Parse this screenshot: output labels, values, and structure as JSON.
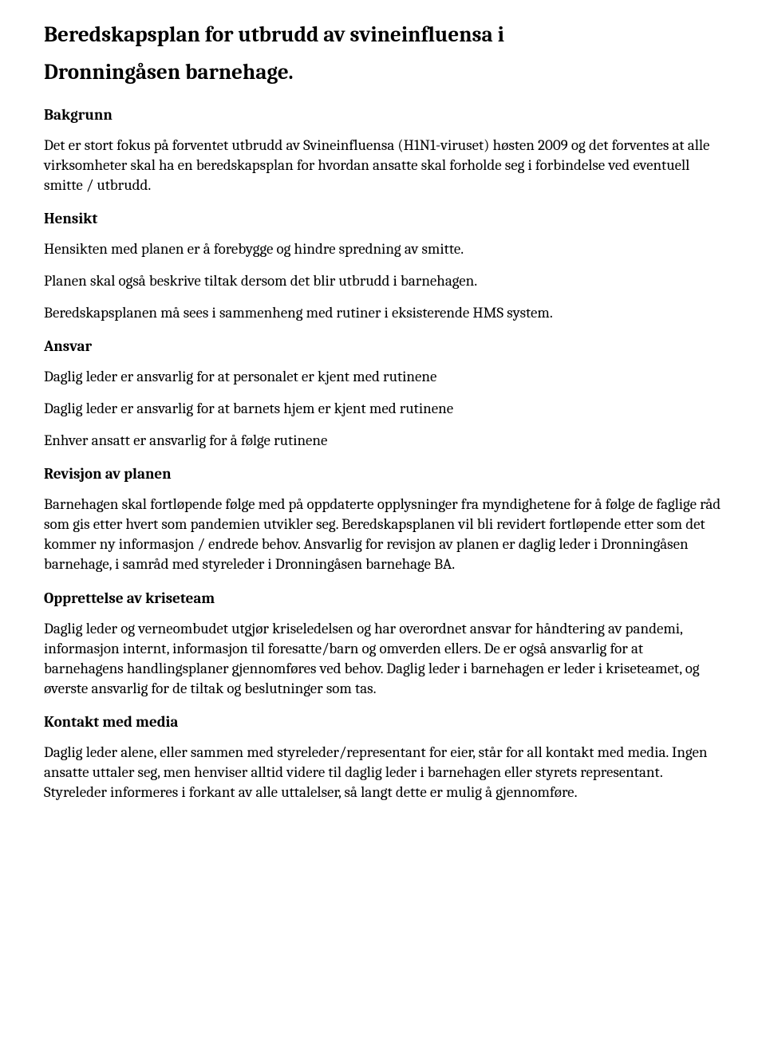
{
  "title_line1": "Beredskapsplan for utbrudd av svineinfluensa i",
  "title_line2": "Dronningåsen barnehage.",
  "sections": {
    "bakgrunn": {
      "heading": " Bakgrunn",
      "p1": "Det er stort fokus på forventet utbrudd av Svineinfluensa (H1N1-viruset) høsten 2009 og det forventes at alle virksomheter skal ha en beredskapsplan for hvordan ansatte skal forholde seg i forbindelse ved eventuell smitte / utbrudd."
    },
    "hensikt": {
      "heading": "Hensikt",
      "p1": "Hensikten med planen er å forebygge og hindre spredning av smitte.",
      "p2": "Planen skal også beskrive tiltak dersom det blir utbrudd i barnehagen.",
      "p3": "Beredskapsplanen må sees i sammenheng med rutiner i eksisterende HMS system."
    },
    "ansvar": {
      "heading": "Ansvar",
      "p1": "Daglig leder er ansvarlig for at personalet er kjent med rutinene",
      "p2": "Daglig leder er ansvarlig for at barnets hjem er kjent med rutinene",
      "p3": "Enhver ansatt er ansvarlig for å følge rutinene"
    },
    "revisjon": {
      "heading": "Revisjon av planen",
      "p1": "Barnehagen skal fortløpende følge med på oppdaterte opplysninger fra myndighetene for å følge de faglige råd som gis etter hvert som pandemien utvikler seg. Beredskapsplanen vil bli revidert fortløpende etter som det kommer ny informasjon / endrede behov. Ansvarlig for revisjon av planen er daglig leder i Dronningåsen barnehage, i samråd med styreleder i Dronningåsen barnehage BA."
    },
    "opprettelse": {
      "heading": "Opprettelse av kriseteam",
      "p1": "Daglig leder og verneombudet utgjør kriseledelsen og har overordnet ansvar for håndtering av pandemi, informasjon internt, informasjon til foresatte/barn og omverden ellers.  De er også ansvarlig for at barnehagens handlingsplaner gjennomføres ved behov. Daglig leder i barnehagen er leder i kriseteamet, og øverste ansvarlig for de tiltak og beslutninger som tas."
    },
    "kontakt": {
      "heading": "Kontakt med media",
      "p1": "Daglig leder alene, eller sammen med styreleder/representant for eier, står for all kontakt med media. Ingen ansatte uttaler seg, men henviser alltid videre til daglig leder i barnehagen eller styrets representant. Styreleder informeres i forkant av alle uttalelser, så langt dette er mulig å gjennomføre."
    }
  }
}
